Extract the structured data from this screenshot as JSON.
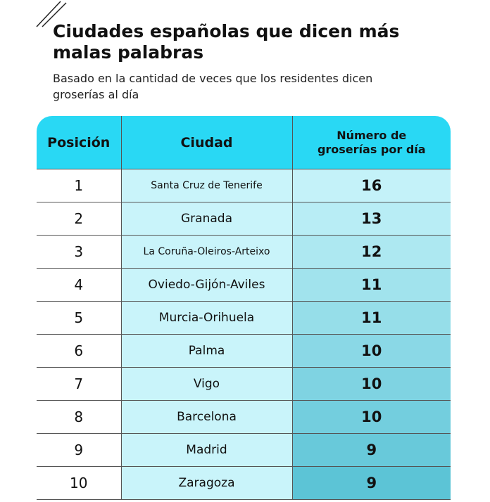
{
  "header": {
    "title_lines": [
      "Ciudades españolas que dicen más",
      "malas palabras"
    ],
    "subtitle_lines": [
      "Basado en la cantidad de veces que los residentes dicen",
      "groserías al día"
    ]
  },
  "table": {
    "columns": [
      "Posición",
      "Ciudad",
      [
        "Número de",
        "groserías por día"
      ]
    ],
    "rows": [
      [
        1,
        "Santa Cruz de Tenerife",
        16
      ],
      [
        2,
        "Granada",
        13
      ],
      [
        3,
        "La Coruña-Oleiros-Arteixo",
        12
      ],
      [
        4,
        "Oviedo-Gijón-Aviles",
        11
      ],
      [
        5,
        "Murcia-Orihuela",
        11
      ],
      [
        6,
        "Palma",
        10
      ],
      [
        7,
        "Vigo",
        10
      ],
      [
        8,
        "Barcelona",
        10
      ],
      [
        9,
        "Madrid",
        9
      ],
      [
        10,
        "Zaragoza",
        9
      ]
    ]
  }
}
